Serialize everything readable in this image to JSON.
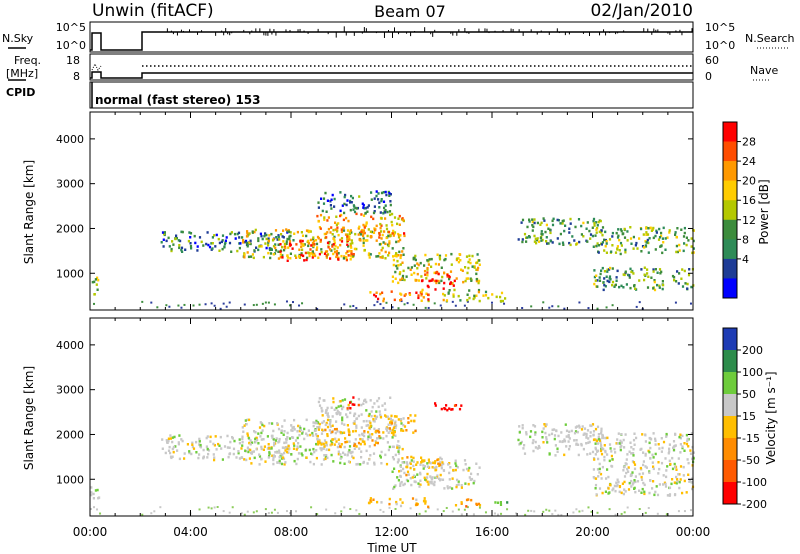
{
  "header": {
    "station": "Unwin (fitACF)",
    "beam": "Beam 07",
    "date": "02/Jan/2010"
  },
  "side_labels": {
    "nsky": "N.Sky",
    "freq": "Freq.",
    "mhz": "[MHz]",
    "cpid": "CPID",
    "nsearch": "N.Search",
    "nave": "Nave",
    "nsky_ticks": [
      "10^5",
      "10^0"
    ],
    "nsearch_ticks": [
      "10^5",
      "10^0"
    ],
    "freq_ticks": [
      "18",
      "8"
    ],
    "nave_ticks": [
      "60",
      "0"
    ],
    "cpid_text": "normal (fast stereo) 153"
  },
  "chart_data": [
    {
      "type": "heatmap",
      "name": "power",
      "ylabel": "Slant Range [km]",
      "yticks": [
        1000,
        2000,
        3000,
        4000
      ],
      "ylim": [
        180,
        4600
      ],
      "xlim": [
        0,
        24
      ],
      "colorbar": {
        "label": "Power [dB]",
        "ticks": [
          "28",
          "24",
          "20",
          "16",
          "12",
          "8",
          "4"
        ],
        "colors": [
          "#ff0000",
          "#ff4d00",
          "#ff9900",
          "#ffcc00",
          "#b4c800",
          "#3c8c3c",
          "#2e8b57",
          "#1e3c96",
          "#0000ff"
        ]
      },
      "regions": [
        {
          "t0": 2.8,
          "t1": 8.0,
          "r0": 1450,
          "r1": 1900,
          "level": 0.25
        },
        {
          "t0": 6.0,
          "t1": 12.5,
          "r0": 1300,
          "r1": 1950,
          "level": 0.55
        },
        {
          "t0": 7.5,
          "t1": 10.5,
          "r0": 1250,
          "r1": 1700,
          "level": 0.85
        },
        {
          "t0": 9.0,
          "t1": 12.5,
          "r0": 1700,
          "r1": 2300,
          "level": 0.7
        },
        {
          "t0": 12.0,
          "t1": 15.5,
          "r0": 750,
          "r1": 1400,
          "level": 0.55
        },
        {
          "t0": 13.0,
          "t1": 14.5,
          "r0": 600,
          "r1": 1000,
          "level": 0.9
        },
        {
          "t0": 9.0,
          "t1": 12.0,
          "r0": 2300,
          "r1": 2800,
          "level": 0.2
        },
        {
          "t0": 11.0,
          "t1": 13.5,
          "r0": 350,
          "r1": 600,
          "level": 0.75
        },
        {
          "t0": 14.0,
          "t1": 16.5,
          "r0": 350,
          "r1": 600,
          "level": 0.5
        },
        {
          "t0": 17.0,
          "t1": 20.5,
          "r0": 1600,
          "r1": 2200,
          "level": 0.35
        },
        {
          "t0": 20.0,
          "t1": 24.0,
          "r0": 1400,
          "r1": 2000,
          "level": 0.4
        },
        {
          "t0": 20.0,
          "t1": 24.0,
          "r0": 600,
          "r1": 1100,
          "level": 0.35
        },
        {
          "t0": 0.0,
          "t1": 0.4,
          "r0": 500,
          "r1": 900,
          "level": 0.45
        }
      ]
    },
    {
      "type": "heatmap",
      "name": "velocity",
      "xlabel": "Time UT",
      "ylabel": "Slant Range [km]",
      "xticks": [
        "00:00",
        "04:00",
        "08:00",
        "12:00",
        "16:00",
        "20:00",
        "00:00"
      ],
      "yticks": [
        1000,
        2000,
        3000,
        4000
      ],
      "ylim": [
        180,
        4600
      ],
      "xlim": [
        0,
        24
      ],
      "colorbar": {
        "label": "Velocity [m s⁻¹]",
        "ticks": [
          "200",
          "100",
          "50",
          "15",
          "-15",
          "-50",
          "-100",
          "-200"
        ],
        "colors": [
          "#1e3cb4",
          "#2d8c4b",
          "#6ecc3c",
          "#c8c8c8",
          "#ffbe00",
          "#ff8c00",
          "#ff5a00",
          "#ff0000"
        ]
      },
      "regions": [
        {
          "t0": 2.8,
          "t1": 8.0,
          "r0": 1400,
          "r1": 1950,
          "level": 3
        },
        {
          "t0": 6.0,
          "t1": 12.5,
          "r0": 1300,
          "r1": 2300,
          "level": 3
        },
        {
          "t0": 9.0,
          "t1": 11.5,
          "r0": 1700,
          "r1": 2150,
          "level": 4
        },
        {
          "t0": 11.0,
          "t1": 13.0,
          "r0": 2000,
          "r1": 2400,
          "level": 4
        },
        {
          "t0": 12.0,
          "t1": 15.5,
          "r0": 750,
          "r1": 1400,
          "level": 3
        },
        {
          "t0": 12.5,
          "t1": 14.0,
          "r0": 1000,
          "r1": 1500,
          "level": 4
        },
        {
          "t0": 9.0,
          "t1": 12.0,
          "r0": 2300,
          "r1": 2800,
          "level": 3
        },
        {
          "t0": 11.0,
          "t1": 13.5,
          "r0": 350,
          "r1": 550,
          "level": 4
        },
        {
          "t0": 14.5,
          "t1": 15.5,
          "r0": 350,
          "r1": 550,
          "level": 5
        },
        {
          "t0": 16.0,
          "t1": 16.6,
          "r0": 380,
          "r1": 520,
          "level": 2
        },
        {
          "t0": 10.2,
          "t1": 10.7,
          "r0": 2550,
          "r1": 2800,
          "level": 7
        },
        {
          "t0": 13.5,
          "t1": 14.8,
          "r0": 2500,
          "r1": 2700,
          "level": 7
        },
        {
          "t0": 17.0,
          "t1": 20.5,
          "r0": 1500,
          "r1": 2200,
          "level": 3
        },
        {
          "t0": 20.0,
          "t1": 24.0,
          "r0": 600,
          "r1": 2000,
          "level": 3
        },
        {
          "t0": 0.0,
          "t1": 0.4,
          "r0": 500,
          "r1": 900,
          "level": 3
        }
      ]
    }
  ]
}
